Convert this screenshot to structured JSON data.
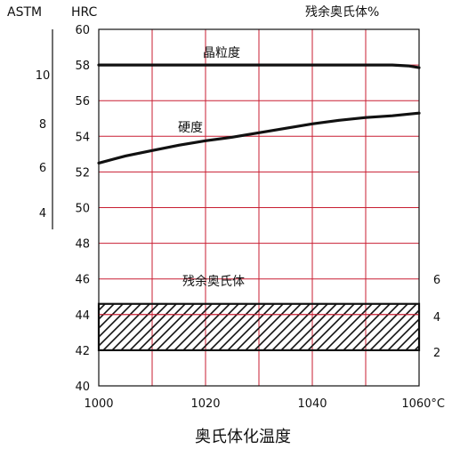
{
  "chart_data": {
    "type": "line",
    "title": "",
    "xlabel": "奥氏体化温度",
    "x_unit": "°C",
    "xlim": [
      1000,
      1060
    ],
    "x_ticks": [
      1000,
      1020,
      1040,
      1060
    ],
    "x_tick_labels": [
      "1000",
      "1020",
      "1040",
      "1060°C"
    ],
    "y_left_hrc": {
      "label": "HRC",
      "ylim": [
        40,
        60
      ],
      "ticks": [
        40,
        42,
        44,
        46,
        48,
        50,
        52,
        54,
        56,
        58,
        60
      ]
    },
    "y_left_astm": {
      "label": "ASTM",
      "ticks": [
        "10",
        "8",
        "6",
        "4"
      ]
    },
    "y_right_retained_austenite": {
      "label": "残余奥氏体%",
      "ticks": [
        "6",
        "4",
        "2"
      ]
    },
    "grid": true,
    "series": [
      {
        "name": "晶粒度",
        "x": [
          1000,
          1010,
          1020,
          1030,
          1040,
          1050,
          1055,
          1058,
          1060
        ],
        "y": [
          58.0,
          58.0,
          58.0,
          58.0,
          58.0,
          58.0,
          58.0,
          57.95,
          57.85
        ]
      },
      {
        "name": "硬度",
        "x": [
          1000,
          1005,
          1010,
          1015,
          1020,
          1025,
          1030,
          1035,
          1040,
          1045,
          1050,
          1055,
          1060
        ],
        "y": [
          52.5,
          52.9,
          53.2,
          53.5,
          53.75,
          53.95,
          54.2,
          54.45,
          54.7,
          54.9,
          55.05,
          55.15,
          55.3
        ]
      }
    ],
    "band": {
      "name": "残余奥氏体",
      "x_range": [
        1000,
        1060
      ],
      "y_range_hrc": [
        42,
        44.6
      ],
      "fill": "hatched"
    },
    "colors": {
      "grid": "#c81e32",
      "line": "#111111"
    }
  }
}
